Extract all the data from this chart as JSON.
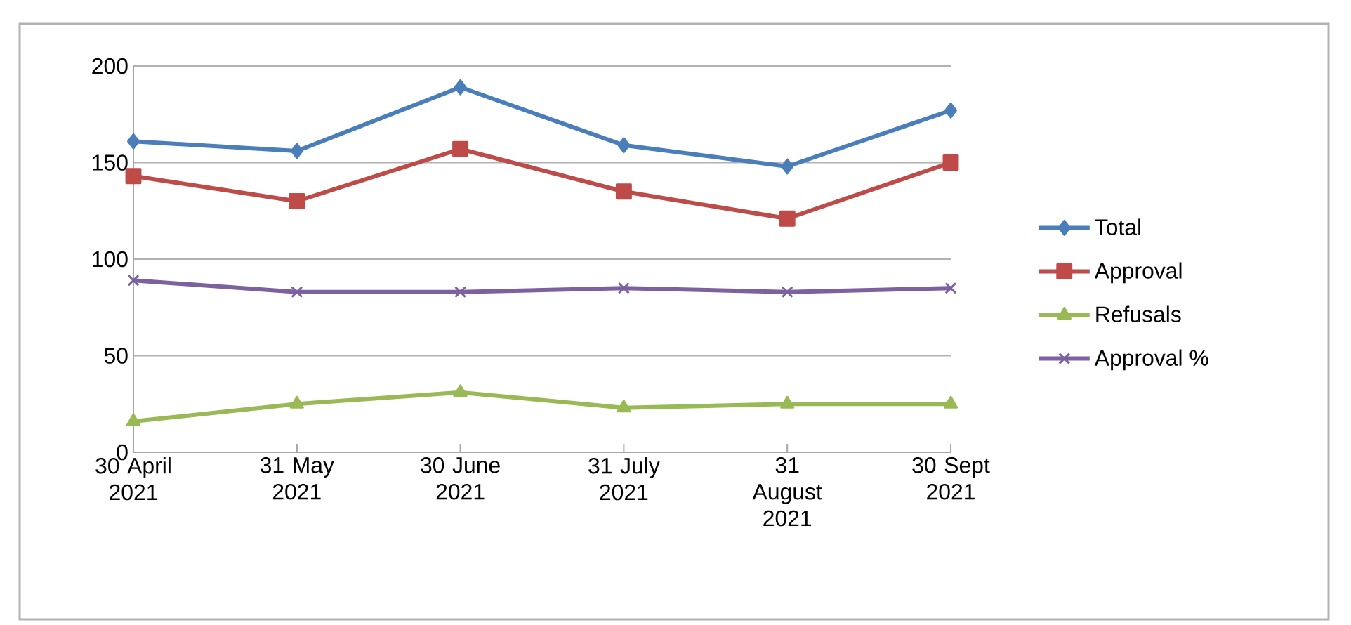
{
  "chart_data": {
    "type": "line",
    "categories": [
      "30 April 2021",
      "31 May 2021",
      "30 June 2021",
      "31 July 2021",
      "31 August 2021",
      "30 Sept 2021"
    ],
    "series": [
      {
        "name": "Total",
        "color": "#4a7ebb",
        "marker": "diamond",
        "values": [
          161,
          156,
          189,
          159,
          148,
          177
        ]
      },
      {
        "name": "Approval",
        "color": "#be4b48",
        "marker": "square",
        "values": [
          143,
          130,
          157,
          135,
          121,
          150
        ]
      },
      {
        "name": "Refusals",
        "color": "#98b954",
        "marker": "triangle",
        "values": [
          16,
          25,
          31,
          23,
          25,
          25
        ]
      },
      {
        "name": "Approval  %",
        "color": "#7d60a0",
        "marker": "cross",
        "values": [
          89,
          83,
          83,
          85,
          83,
          85
        ]
      }
    ],
    "ylim": [
      0,
      200
    ],
    "yticks": [
      0,
      50,
      100,
      150,
      200
    ],
    "grid": "y",
    "legend": "right",
    "line_style": "solid"
  }
}
